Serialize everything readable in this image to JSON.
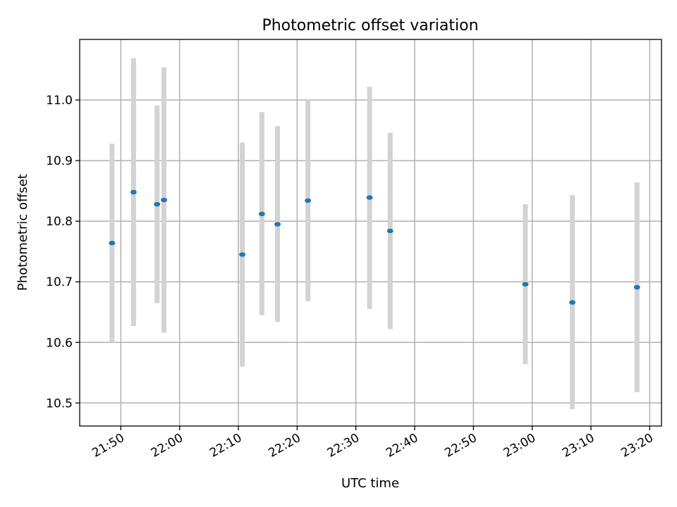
{
  "chart_data": {
    "type": "scatter",
    "title": "Photometric offset variation",
    "xlabel": "UTC time",
    "ylabel": "Photometric offset",
    "xlim": [
      "21:43",
      "23:22"
    ],
    "ylim": [
      10.462,
      11.1
    ],
    "x_ticks": [
      "21:50",
      "22:00",
      "22:10",
      "22:20",
      "22:30",
      "22:40",
      "22:50",
      "23:00",
      "23:10",
      "23:20"
    ],
    "y_ticks": [
      "10.5",
      "10.6",
      "10.7",
      "10.8",
      "10.9",
      "11.0"
    ],
    "grid": true,
    "marker_color": "#1f77b4",
    "errorbar_color": "#d3d3d3",
    "points": [
      {
        "x": "21:48:30",
        "y": 10.764,
        "err_low": 10.6,
        "err_high": 10.928
      },
      {
        "x": "21:52:10",
        "y": 10.848,
        "err_low": 10.627,
        "err_high": 11.069
      },
      {
        "x": "21:56:10",
        "y": 10.828,
        "err_low": 10.665,
        "err_high": 10.991
      },
      {
        "x": "21:57:20",
        "y": 10.835,
        "err_low": 10.616,
        "err_high": 11.054
      },
      {
        "x": "22:10:40",
        "y": 10.745,
        "err_low": 10.56,
        "err_high": 10.93
      },
      {
        "x": "22:14:00",
        "y": 10.812,
        "err_low": 10.645,
        "err_high": 10.98
      },
      {
        "x": "22:16:40",
        "y": 10.795,
        "err_low": 10.634,
        "err_high": 10.957
      },
      {
        "x": "22:21:50",
        "y": 10.834,
        "err_low": 10.668,
        "err_high": 11.0
      },
      {
        "x": "22:32:20",
        "y": 10.839,
        "err_low": 10.655,
        "err_high": 11.022
      },
      {
        "x": "22:35:50",
        "y": 10.784,
        "err_low": 10.622,
        "err_high": 10.946
      },
      {
        "x": "22:58:50",
        "y": 10.696,
        "err_low": 10.564,
        "err_high": 10.828
      },
      {
        "x": "23:06:50",
        "y": 10.666,
        "err_low": 10.49,
        "err_high": 10.843
      },
      {
        "x": "23:17:50",
        "y": 10.691,
        "err_low": 10.518,
        "err_high": 10.864
      }
    ]
  }
}
